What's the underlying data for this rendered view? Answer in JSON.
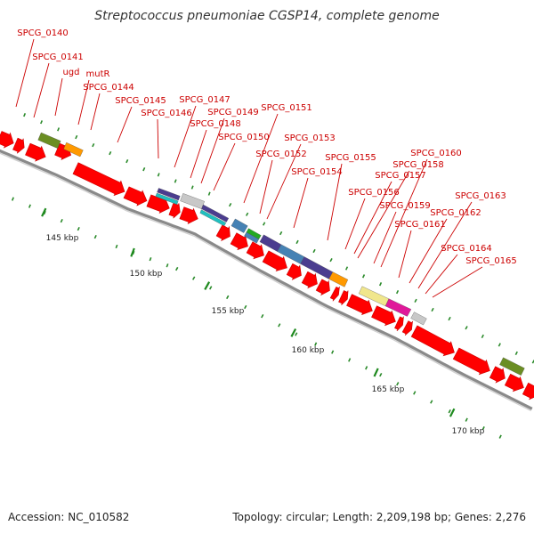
{
  "title": "Streptococcus pneumoniae CGSP14, complete genome",
  "footer": {
    "accession": "Accession: NC_010582",
    "topology": "Topology: circular; Length: 2,209,198 bp; Genes: 2,276"
  },
  "colors": {
    "label": "#cc0000",
    "gene_arrow": "#ff0000",
    "backbone": "#8a8a8a",
    "tick_major": "#1f8a1f",
    "tick_minor": "#2a8a2a",
    "feature_olive": "#6b8e23",
    "feature_orange": "#ff9900",
    "feature_purple": "#4b3d8f",
    "feature_grey": "#c8c8c8",
    "feature_steelblue": "#4682b4",
    "feature_green": "#22aa22",
    "feature_yellow": "#f0e68c",
    "feature_magenta": "#e0189a",
    "feature_cyan": "#20c0c0"
  },
  "scale_labels": [
    "145 kbp",
    "150 kbp",
    "155 kbp",
    "160 kbp",
    "165 kbp",
    "170 kbp"
  ],
  "gene_labels": [
    "SPCG_0140",
    "SPCG_0141",
    "ugd",
    "mutR",
    "SPCG_0144",
    "SPCG_0145",
    "SPCG_0146",
    "SPCG_0147",
    "SPCG_0148",
    "SPCG_0149",
    "SPCG_0150",
    "SPCG_0151",
    "SPCG_0152",
    "SPCG_0153",
    "SPCG_0154",
    "SPCG_0155",
    "SPCG_0156",
    "SPCG_0157",
    "SPCG_0158",
    "SPCG_0159",
    "SPCG_0160",
    "SPCG_0161",
    "SPCG_0162",
    "SPCG_0163",
    "SPCG_0164",
    "SPCG_0165"
  ]
}
